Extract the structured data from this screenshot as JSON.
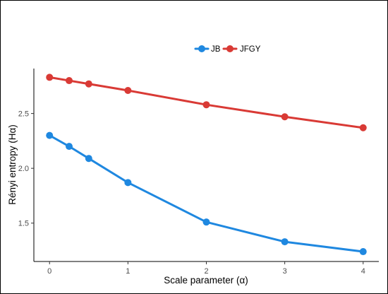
{
  "chart_data": {
    "type": "line",
    "title": "",
    "xlabel": "Scale parameter (α)",
    "ylabel": "Rényi entropy (Hα)",
    "x": [
      0,
      0.25,
      0.5,
      1,
      2,
      3,
      4
    ],
    "x_ticks": [
      0,
      1,
      2,
      3,
      4
    ],
    "x_tick_labels": [
      "0",
      "1",
      "2",
      "3",
      "4"
    ],
    "y_ticks": [
      1.5,
      2.0,
      2.5
    ],
    "y_tick_labels": [
      "1.5",
      "2.0",
      "2.5"
    ],
    "xlim": [
      -0.2,
      4.2
    ],
    "ylim": [
      1.15,
      2.91
    ],
    "grid": false,
    "legend_position": "top",
    "series": [
      {
        "name": "JB",
        "color": "#1f88e0",
        "values": [
          2.3,
          2.2,
          2.09,
          1.87,
          1.51,
          1.33,
          1.24
        ]
      },
      {
        "name": "JFGY",
        "color": "#d93a35",
        "values": [
          2.83,
          2.8,
          2.77,
          2.71,
          2.58,
          2.47,
          2.37
        ]
      }
    ]
  }
}
